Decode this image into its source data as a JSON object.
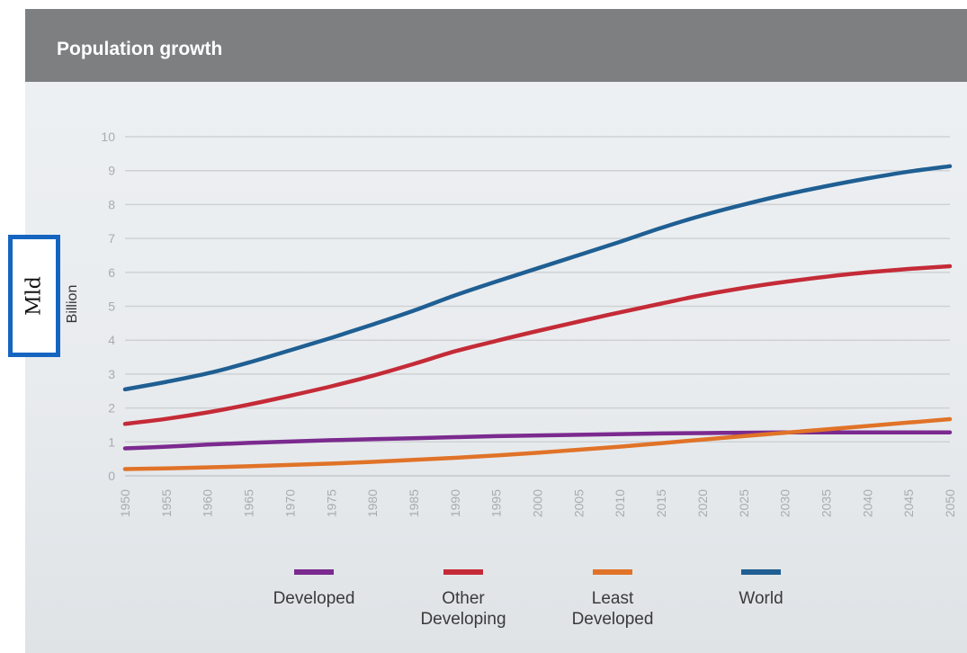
{
  "header": {
    "title": "Population growth"
  },
  "overlay_label": "Mld",
  "chart_data": {
    "type": "line",
    "title": "Population growth",
    "ylabel": "Billion",
    "xlabel": "",
    "ylim": [
      0,
      10
    ],
    "xlim": [
      1950,
      2050
    ],
    "grid": true,
    "legend_position": "bottom",
    "x": [
      1950,
      1955,
      1960,
      1965,
      1970,
      1975,
      1980,
      1985,
      1990,
      1995,
      2000,
      2005,
      2010,
      2015,
      2020,
      2025,
      2030,
      2035,
      2040,
      2045,
      2050
    ],
    "x_ticks": [
      "1950",
      "1955",
      "1960",
      "1965",
      "1970",
      "1975",
      "1980",
      "1985",
      "1990",
      "1995",
      "2000",
      "2005",
      "2010",
      "2015",
      "2020",
      "2025",
      "2030",
      "2035",
      "2040",
      "2045",
      "2050"
    ],
    "y_ticks": [
      "0",
      "1",
      "2",
      "3",
      "4",
      "5",
      "6",
      "7",
      "8",
      "9",
      "10"
    ],
    "series": [
      {
        "name": "Developed",
        "color": "#7b2a8f",
        "values": [
          0.81,
          0.86,
          0.92,
          0.97,
          1.01,
          1.05,
          1.08,
          1.11,
          1.14,
          1.17,
          1.19,
          1.21,
          1.23,
          1.25,
          1.26,
          1.27,
          1.28,
          1.28,
          1.28,
          1.28,
          1.28
        ]
      },
      {
        "name": "Other Developing",
        "color": "#c42b37",
        "values": [
          1.53,
          1.68,
          1.87,
          2.1,
          2.36,
          2.64,
          2.95,
          3.3,
          3.67,
          3.98,
          4.27,
          4.55,
          4.82,
          5.08,
          5.33,
          5.54,
          5.72,
          5.87,
          6.0,
          6.1,
          6.18
        ]
      },
      {
        "name": "Least Developed",
        "color": "#e07328",
        "values": [
          0.2,
          0.22,
          0.25,
          0.28,
          0.32,
          0.36,
          0.41,
          0.47,
          0.53,
          0.6,
          0.68,
          0.77,
          0.86,
          0.96,
          1.07,
          1.17,
          1.27,
          1.37,
          1.47,
          1.57,
          1.67
        ]
      },
      {
        "name": "World",
        "color": "#1f5f93",
        "values": [
          2.55,
          2.77,
          3.02,
          3.34,
          3.7,
          4.07,
          4.46,
          4.87,
          5.32,
          5.73,
          6.12,
          6.51,
          6.9,
          7.31,
          7.68,
          8.0,
          8.29,
          8.54,
          8.77,
          8.97,
          9.13
        ]
      }
    ],
    "legend": [
      {
        "label_lines": [
          "Developed"
        ],
        "color": "#7b2a8f"
      },
      {
        "label_lines": [
          "Other",
          "Developing"
        ],
        "color": "#c42b37"
      },
      {
        "label_lines": [
          "Least",
          "Developed"
        ],
        "color": "#e07328"
      },
      {
        "label_lines": [
          "World"
        ],
        "color": "#1f5f93"
      }
    ]
  }
}
